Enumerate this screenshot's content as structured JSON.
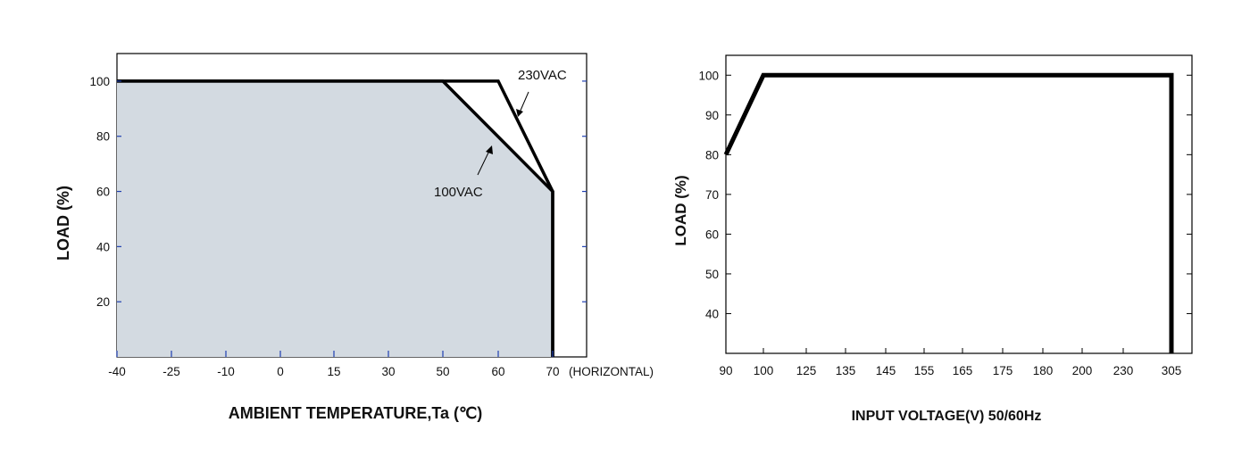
{
  "chart_data": [
    {
      "type": "area",
      "xlabel": "AMBIENT TEMPERATURE,Ta (℃)",
      "ylabel": "LOAD (%)",
      "x_categories": [
        "-40",
        "-25",
        "-10",
        "0",
        "15",
        "30",
        "50",
        "60",
        "70"
      ],
      "x_suffix": "(HORIZONTAL)",
      "y_ticks": [
        20,
        40,
        60,
        80,
        100
      ],
      "ylim": [
        0,
        110
      ],
      "grid": false,
      "series": [
        {
          "name": "100VAC",
          "points": [
            [
              "-40",
              100
            ],
            [
              "50",
              100
            ],
            [
              "70",
              60
            ],
            [
              "70",
              0
            ]
          ]
        },
        {
          "name": "230VAC",
          "points": [
            [
              "-40",
              100
            ],
            [
              "60",
              100
            ],
            [
              "70",
              60
            ],
            [
              "70",
              0
            ]
          ]
        }
      ],
      "annotations": [
        "230VAC",
        "100VAC"
      ],
      "colors": {
        "fill": "#d3dae1",
        "line": "#000000",
        "tick": "#1f3fb0"
      }
    },
    {
      "type": "line",
      "xlabel": "INPUT VOLTAGE(V) 50/60Hz",
      "ylabel": "LOAD (%)",
      "x_categories": [
        "90",
        "100",
        "125",
        "135",
        "145",
        "155",
        "165",
        "175",
        "180",
        "200",
        "230",
        "305"
      ],
      "y_ticks": [
        40,
        50,
        60,
        70,
        80,
        90,
        100
      ],
      "ylim": [
        30,
        105
      ],
      "grid": false,
      "series": [
        {
          "name": "",
          "points": [
            [
              "90",
              80
            ],
            [
              "100",
              100
            ],
            [
              "305",
              100
            ],
            [
              "305",
              30
            ]
          ]
        }
      ]
    }
  ]
}
